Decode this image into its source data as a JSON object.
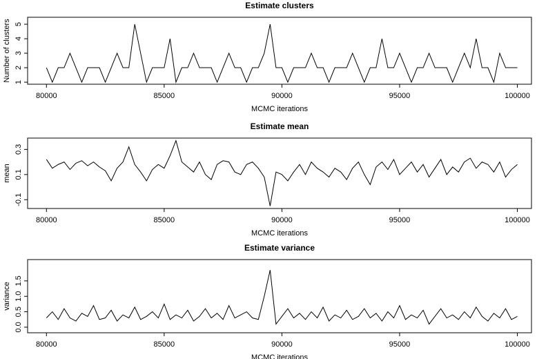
{
  "chart_data": [
    {
      "type": "line",
      "title": "Estimate clusters",
      "x_label": "MCMC iterations",
      "y_label": "Number of clusters",
      "color": "#000000",
      "xlim": [
        79200,
        100600
      ],
      "ylim": [
        0.86,
        5.48
      ],
      "xticks": [
        80000,
        85000,
        90000,
        95000,
        100000
      ],
      "yticks": [
        1,
        2,
        3,
        4,
        5
      ],
      "x": [
        80000,
        80250,
        80500,
        80750,
        81000,
        81250,
        81500,
        81750,
        82000,
        82250,
        82500,
        82750,
        83000,
        83250,
        83500,
        83750,
        84000,
        84250,
        84500,
        84750,
        85000,
        85250,
        85500,
        85750,
        86000,
        86250,
        86500,
        86750,
        87000,
        87250,
        87500,
        87750,
        88000,
        88250,
        88500,
        88750,
        89000,
        89250,
        89500,
        89750,
        90000,
        90250,
        90500,
        90750,
        91000,
        91250,
        91500,
        91750,
        92000,
        92250,
        92500,
        92750,
        93000,
        93250,
        93500,
        93750,
        94000,
        94250,
        94500,
        94750,
        95000,
        95250,
        95500,
        95750,
        96000,
        96250,
        96500,
        96750,
        97000,
        97250,
        97500,
        97750,
        98000,
        98250,
        98500,
        98750,
        99000,
        99250,
        99500,
        99750,
        100000
      ],
      "values": [
        2,
        1,
        2,
        2,
        3,
        2,
        1,
        2,
        2,
        2,
        1,
        2,
        3,
        2,
        2,
        5,
        3,
        1,
        2,
        2,
        2,
        4,
        1,
        2,
        2,
        3,
        2,
        2,
        2,
        1,
        2,
        3,
        2,
        2,
        1,
        2,
        2,
        3,
        5,
        2,
        2,
        1,
        2,
        2,
        2,
        3,
        2,
        2,
        1,
        2,
        2,
        2,
        3,
        2,
        1,
        2,
        2,
        4,
        2,
        2,
        3,
        2,
        1,
        2,
        2,
        3,
        2,
        2,
        2,
        1,
        2,
        3,
        2,
        4,
        2,
        2,
        1,
        3,
        2,
        2,
        2
      ]
    },
    {
      "type": "line",
      "title": "Estimate mean",
      "x_label": "MCMC iterations",
      "y_label": "mean",
      "color": "#000000",
      "xlim": [
        79200,
        100600
      ],
      "ylim": [
        -0.17,
        0.39
      ],
      "xticks": [
        80000,
        85000,
        90000,
        95000,
        100000
      ],
      "yticks": [
        -0.1,
        0.1,
        0.3
      ],
      "x": [
        80000,
        80250,
        80500,
        80750,
        81000,
        81250,
        81500,
        81750,
        82000,
        82250,
        82500,
        82750,
        83000,
        83250,
        83500,
        83750,
        84000,
        84250,
        84500,
        84750,
        85000,
        85250,
        85500,
        85750,
        86000,
        86250,
        86500,
        86750,
        87000,
        87250,
        87500,
        87750,
        88000,
        88250,
        88500,
        88750,
        89000,
        89250,
        89500,
        89750,
        90000,
        90250,
        90500,
        90750,
        91000,
        91250,
        91500,
        91750,
        92000,
        92250,
        92500,
        92750,
        93000,
        93250,
        93500,
        93750,
        94000,
        94250,
        94500,
        94750,
        95000,
        95250,
        95500,
        95750,
        96000,
        96250,
        96500,
        96750,
        97000,
        97250,
        97500,
        97750,
        98000,
        98250,
        98500,
        98750,
        99000,
        99250,
        99500,
        99750,
        100000
      ],
      "values": [
        0.22,
        0.15,
        0.18,
        0.2,
        0.14,
        0.19,
        0.21,
        0.17,
        0.2,
        0.16,
        0.13,
        0.05,
        0.15,
        0.2,
        0.32,
        0.18,
        0.12,
        0.05,
        0.14,
        0.18,
        0.15,
        0.25,
        0.37,
        0.2,
        0.16,
        0.12,
        0.2,
        0.1,
        0.06,
        0.18,
        0.21,
        0.2,
        0.12,
        0.1,
        0.18,
        0.2,
        0.15,
        0.08,
        -0.15,
        0.12,
        0.1,
        0.05,
        0.12,
        0.18,
        0.1,
        0.2,
        0.15,
        0.12,
        0.08,
        0.15,
        0.12,
        0.06,
        0.15,
        0.2,
        0.1,
        0.02,
        0.16,
        0.2,
        0.14,
        0.22,
        0.1,
        0.15,
        0.2,
        0.12,
        0.18,
        0.08,
        0.15,
        0.22,
        0.1,
        0.16,
        0.12,
        0.2,
        0.23,
        0.15,
        0.2,
        0.18,
        0.12,
        0.2,
        0.08,
        0.14,
        0.18
      ]
    },
    {
      "type": "line",
      "title": "Estimate variance",
      "x_label": "MCMC iterations",
      "y_label": "variance",
      "color": "#000000",
      "xlim": [
        79200,
        100600
      ],
      "ylim": [
        -0.18,
        2.19
      ],
      "xticks": [
        80000,
        85000,
        90000,
        95000,
        100000
      ],
      "yticks": [
        {
          "value": 0,
          "label": "0.0"
        },
        0.5,
        {
          "value": 1,
          "label": "1.0"
        },
        1.5
      ],
      "x": [
        80000,
        80250,
        80500,
        80750,
        81000,
        81250,
        81500,
        81750,
        82000,
        82250,
        82500,
        82750,
        83000,
        83250,
        83500,
        83750,
        84000,
        84250,
        84500,
        84750,
        85000,
        85250,
        85500,
        85750,
        86000,
        86250,
        86500,
        86750,
        87000,
        87250,
        87500,
        87750,
        88000,
        88250,
        88500,
        88750,
        89000,
        89250,
        89500,
        89750,
        90000,
        90250,
        90500,
        90750,
        91000,
        91250,
        91500,
        91750,
        92000,
        92250,
        92500,
        92750,
        93000,
        93250,
        93500,
        93750,
        94000,
        94250,
        94500,
        94750,
        95000,
        95250,
        95500,
        95750,
        96000,
        96250,
        96500,
        96750,
        97000,
        97250,
        97500,
        97750,
        98000,
        98250,
        98500,
        98750,
        99000,
        99250,
        99500,
        99750,
        100000
      ],
      "values": [
        0.3,
        0.5,
        0.25,
        0.6,
        0.3,
        0.2,
        0.45,
        0.35,
        0.7,
        0.25,
        0.3,
        0.55,
        0.2,
        0.4,
        0.3,
        0.65,
        0.25,
        0.35,
        0.5,
        0.3,
        0.75,
        0.25,
        0.4,
        0.3,
        0.55,
        0.2,
        0.35,
        0.6,
        0.3,
        0.45,
        0.25,
        0.7,
        0.3,
        0.4,
        0.5,
        0.3,
        0.25,
        1.0,
        1.85,
        0.1,
        0.35,
        0.6,
        0.3,
        0.45,
        0.25,
        0.5,
        0.3,
        0.65,
        0.2,
        0.4,
        0.3,
        0.55,
        0.25,
        0.35,
        0.6,
        0.3,
        0.45,
        0.2,
        0.5,
        0.3,
        0.7,
        0.25,
        0.4,
        0.3,
        0.55,
        0.1,
        0.35,
        0.6,
        0.3,
        0.4,
        0.25,
        0.5,
        0.3,
        0.65,
        0.35,
        0.2,
        0.45,
        0.3,
        0.6,
        0.25,
        0.35
      ]
    }
  ]
}
